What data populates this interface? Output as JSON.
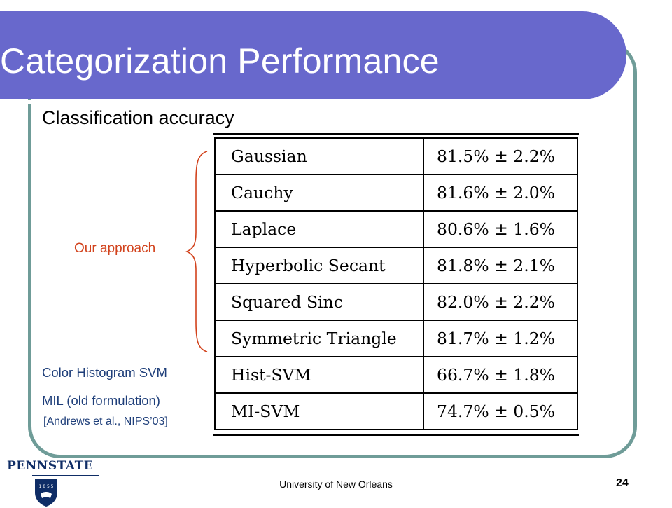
{
  "slide": {
    "title": "Categorization Performance",
    "subtitle": "Classification accuracy"
  },
  "annotations": {
    "our_approach": "Our approach",
    "hist_svm_label": "Color Histogram SVM",
    "mil_label": "MIL (old formulation)",
    "citation": "[Andrews et al., NIPS’03]"
  },
  "table": {
    "rows": [
      {
        "method": "Gaussian",
        "accuracy": "81.5% ± 2.2%"
      },
      {
        "method": "Cauchy",
        "accuracy": "81.6% ± 2.0%"
      },
      {
        "method": "Laplace",
        "accuracy": "80.6% ± 1.6%"
      },
      {
        "method": "Hyperbolic Secant",
        "accuracy": "81.8% ± 2.1%"
      },
      {
        "method": "Squared Sinc",
        "accuracy": "82.0% ± 2.2%"
      },
      {
        "method": "Symmetric Triangle",
        "accuracy": "81.7% ± 1.2%"
      },
      {
        "method": "Hist-SVM",
        "accuracy": "66.7% ± 1.8%"
      },
      {
        "method": "MI-SVM",
        "accuracy": "74.7% ± 0.5%"
      }
    ]
  },
  "footer": {
    "logo_text": "PENNSTATE",
    "logo_year": "1 8 5 5",
    "text": "University of New Orleans",
    "page_number": "24"
  },
  "colors": {
    "title_bar": "#6868cc",
    "frame": "#6f9c98",
    "our_approach": "#d2431d",
    "labels": "#1f3f7a",
    "logo": "#0f2d66"
  }
}
